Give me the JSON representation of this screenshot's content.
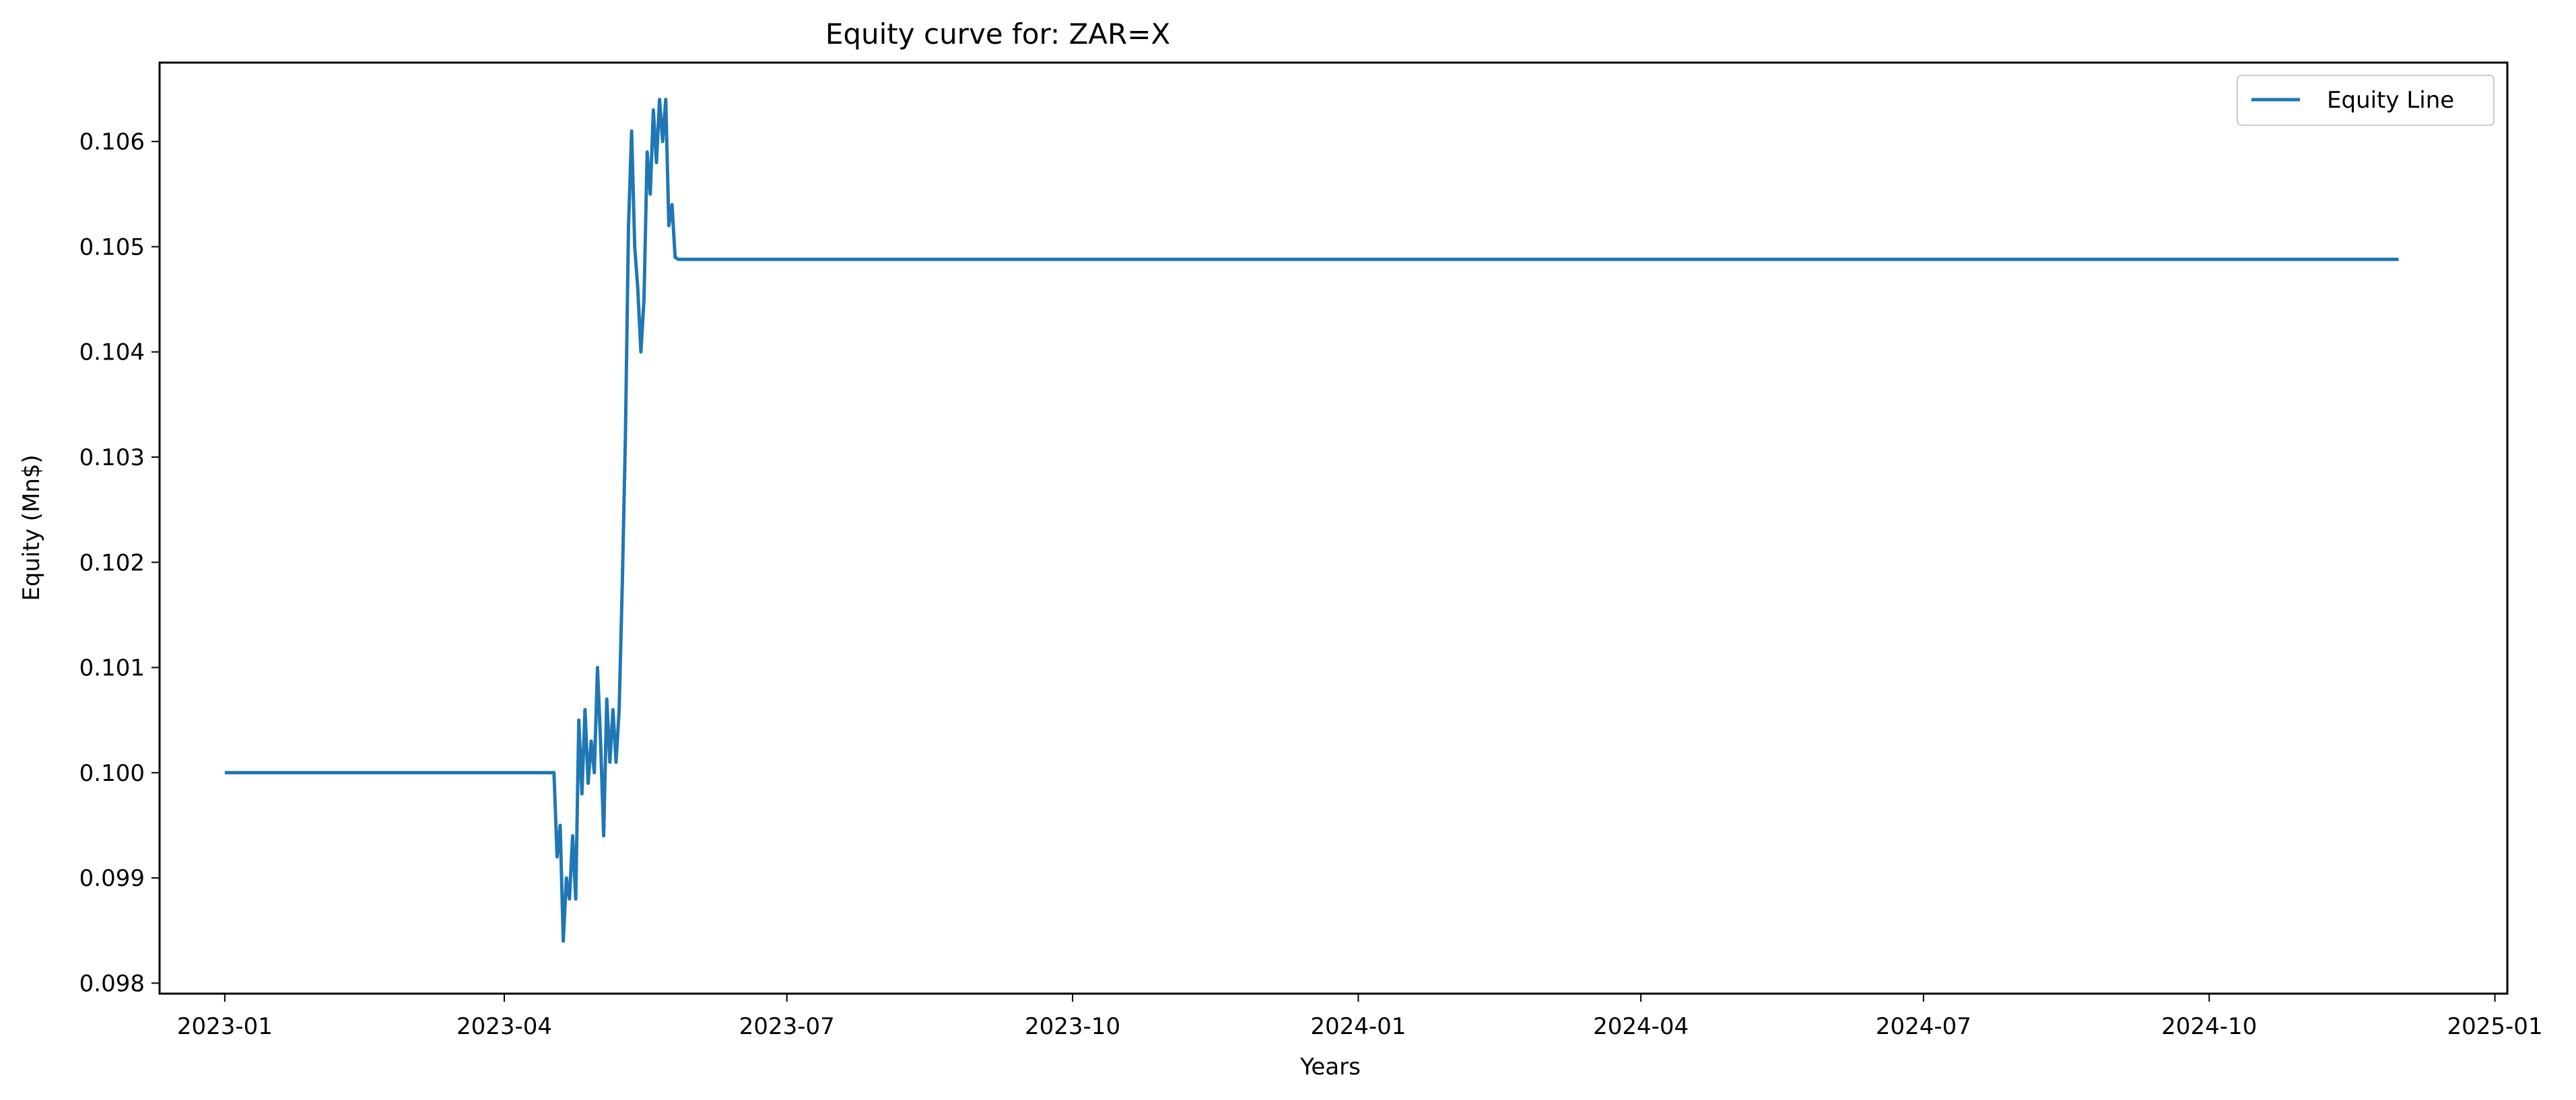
{
  "chart_data": {
    "type": "line",
    "title": "Equity curve for: ZAR=X",
    "xlabel": "Years",
    "ylabel": "Equity (Mn$)",
    "x_tick_labels": [
      "2023-01",
      "2023-04",
      "2023-07",
      "2023-10",
      "2024-01",
      "2024-04",
      "2024-07",
      "2024-10",
      "2025-01"
    ],
    "y_tick_labels": [
      "0.098",
      "0.099",
      "0.100",
      "0.101",
      "0.102",
      "0.103",
      "0.104",
      "0.105",
      "0.106"
    ],
    "xlim": [
      "2022-12-11",
      "2025-01-05"
    ],
    "ylim": [
      0.0979,
      0.10675
    ],
    "grid": false,
    "legend_position": "top-right",
    "colors": {
      "series": "#1f77b4",
      "axes": "#000000",
      "background": "#ffffff",
      "legend_border": "#cccccc"
    },
    "series": [
      {
        "name": "Equity Line",
        "x": [
          "2023-01-01",
          "2023-04-17",
          "2023-04-18",
          "2023-04-19",
          "2023-04-20",
          "2023-04-21",
          "2023-04-22",
          "2023-04-23",
          "2023-04-24",
          "2023-04-25",
          "2023-04-26",
          "2023-04-27",
          "2023-04-28",
          "2023-04-29",
          "2023-04-30",
          "2023-05-01",
          "2023-05-02",
          "2023-05-03",
          "2023-05-04",
          "2023-05-05",
          "2023-05-06",
          "2023-05-07",
          "2023-05-08",
          "2023-05-09",
          "2023-05-10",
          "2023-05-11",
          "2023-05-12",
          "2023-05-13",
          "2023-05-14",
          "2023-05-15",
          "2023-05-16",
          "2023-05-17",
          "2023-05-18",
          "2023-05-19",
          "2023-05-20",
          "2023-05-21",
          "2023-05-22",
          "2023-05-23",
          "2023-05-24",
          "2023-05-25",
          "2023-05-26",
          "2023-05-27",
          "2023-12-01",
          "2024-12-01"
        ],
        "y": [
          0.1,
          0.1,
          0.0992,
          0.0995,
          0.0984,
          0.099,
          0.0988,
          0.0994,
          0.0988,
          0.1005,
          0.0998,
          0.1006,
          0.0999,
          0.1003,
          0.1,
          0.101,
          0.1003,
          0.0994,
          0.1007,
          0.1001,
          0.1006,
          0.1001,
          0.1006,
          0.1018,
          0.1032,
          0.1052,
          0.1061,
          0.105,
          0.1046,
          0.104,
          0.1045,
          0.1059,
          0.1055,
          0.1063,
          0.1058,
          0.1064,
          0.106,
          0.1064,
          0.1052,
          0.1054,
          0.1049,
          0.10488,
          0.10488,
          0.10488
        ]
      }
    ]
  }
}
